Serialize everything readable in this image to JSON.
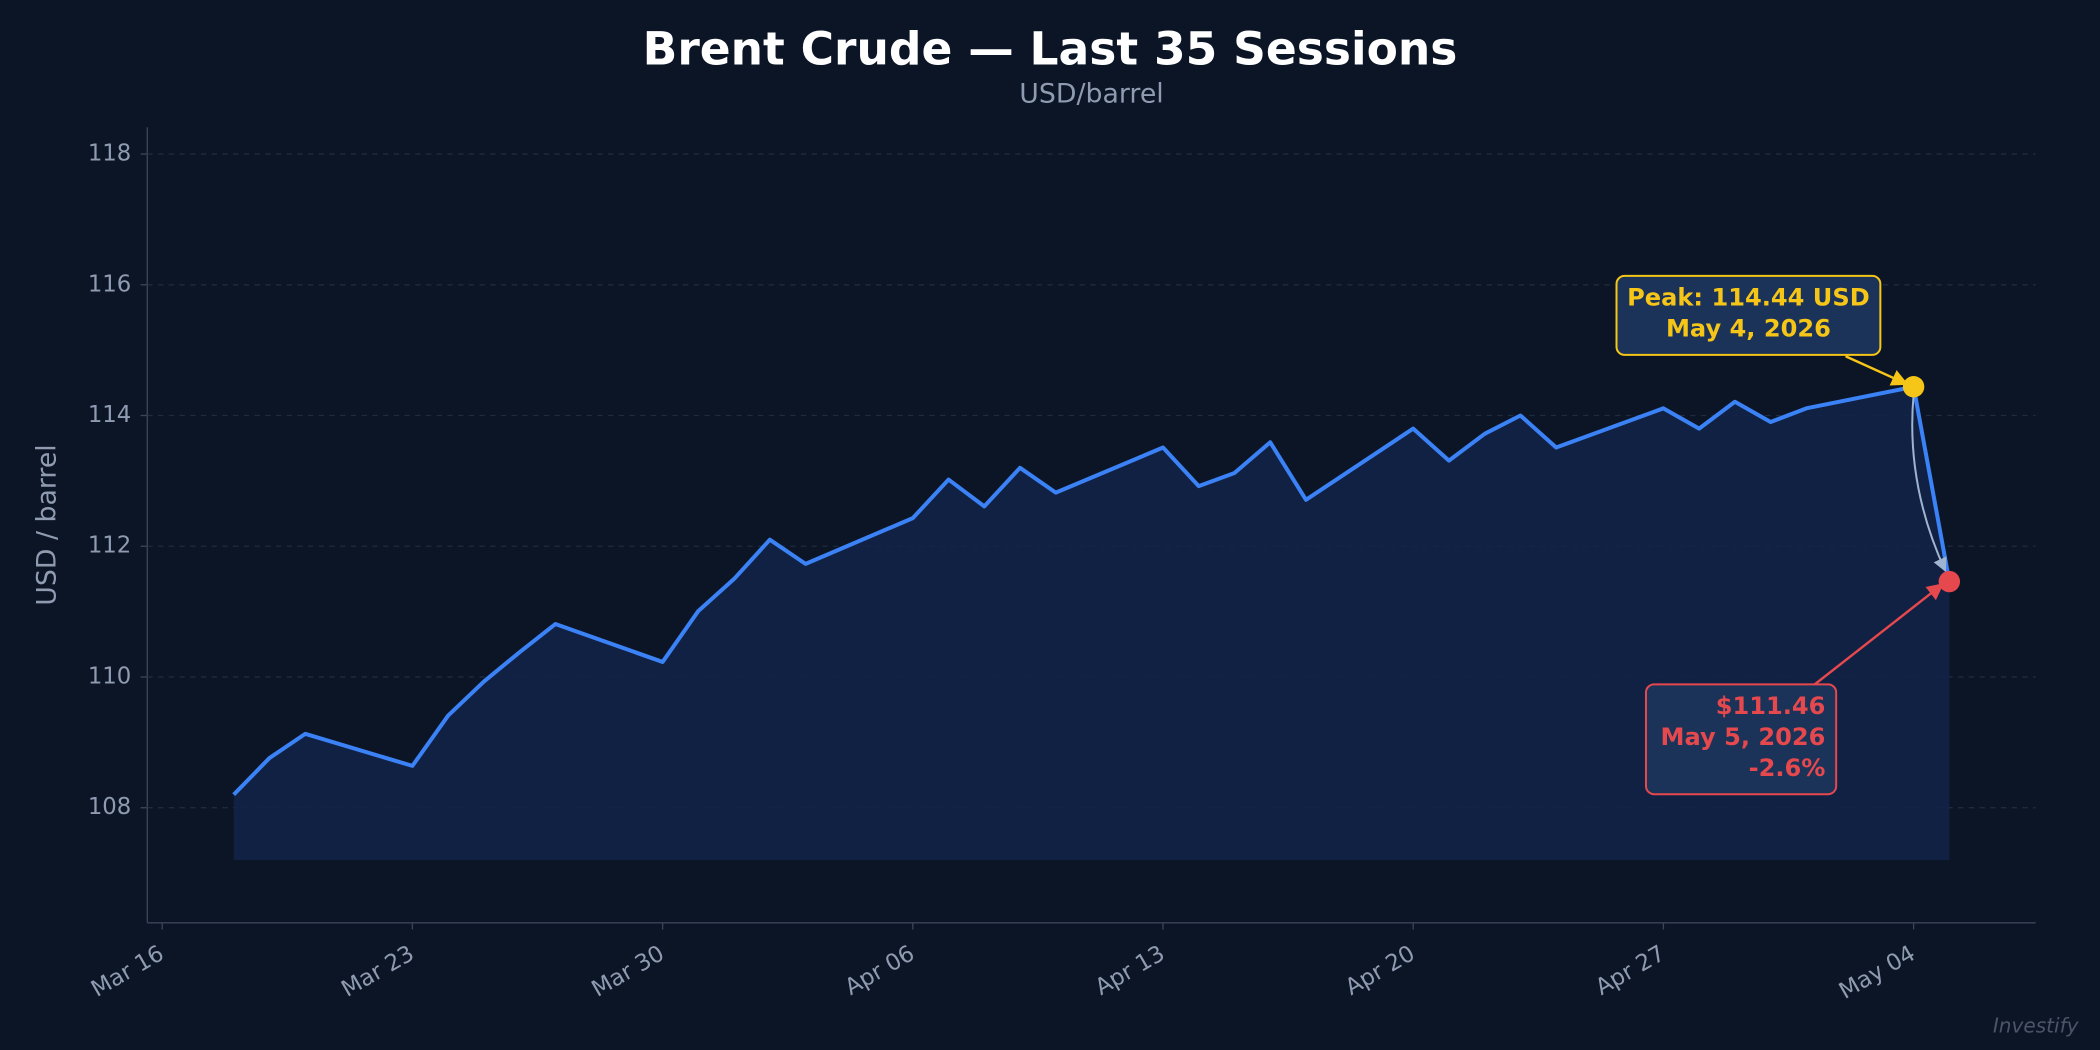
{
  "chart_data": {
    "type": "line",
    "title": "Brent Crude — Last 35 Sessions",
    "subtitle": "USD/barrel",
    "y_label": "USD / barrel",
    "watermark": "Investify",
    "x": [
      "2026-03-18",
      "2026-03-19",
      "2026-03-20",
      "2026-03-23",
      "2026-03-24",
      "2026-03-25",
      "2026-03-26",
      "2026-03-27",
      "2026-03-30",
      "2026-03-31",
      "2026-04-01",
      "2026-04-02",
      "2026-04-03",
      "2026-04-06",
      "2026-04-07",
      "2026-04-08",
      "2026-04-09",
      "2026-04-10",
      "2026-04-13",
      "2026-04-14",
      "2026-04-15",
      "2026-04-16",
      "2026-04-17",
      "2026-04-20",
      "2026-04-21",
      "2026-04-22",
      "2026-04-23",
      "2026-04-24",
      "2026-04-27",
      "2026-04-28",
      "2026-04-29",
      "2026-04-30",
      "2026-05-01",
      "2026-05-04",
      "2026-05-05"
    ],
    "series": [
      {
        "name": "Brent Crude",
        "color": "#3b82f6",
        "values": [
          108.2,
          108.76,
          109.13,
          108.64,
          109.41,
          109.93,
          110.38,
          110.81,
          110.23,
          111.01,
          111.5,
          112.1,
          111.73,
          112.43,
          113.02,
          112.61,
          113.2,
          112.82,
          113.51,
          112.92,
          113.12,
          113.59,
          112.71,
          113.8,
          113.31,
          113.72,
          114.0,
          113.51,
          114.11,
          113.8,
          114.21,
          113.9,
          114.11,
          114.44,
          111.46
        ]
      }
    ],
    "fill_baseline": 107.2,
    "xlim": [
      "2026-03-15T14:00Z",
      "2026-05-07T10:00Z"
    ],
    "xticks": [
      {
        "value": "2026-03-16",
        "label": "Mar 16"
      },
      {
        "value": "2026-03-23",
        "label": "Mar 23"
      },
      {
        "value": "2026-03-30",
        "label": "Mar 30"
      },
      {
        "value": "2026-04-06",
        "label": "Apr 06"
      },
      {
        "value": "2026-04-13",
        "label": "Apr 13"
      },
      {
        "value": "2026-04-20",
        "label": "Apr 20"
      },
      {
        "value": "2026-04-27",
        "label": "Apr 27"
      },
      {
        "value": "2026-05-04",
        "label": "May 04"
      }
    ],
    "ylim": [
      106.24,
      118.41
    ],
    "yticks": [
      108,
      110,
      112,
      114,
      116,
      118
    ],
    "grid": true,
    "annotations": [
      {
        "index": 33,
        "color": "#f5c518",
        "lines": [
          "Peak: 114.44 USD",
          "May 4, 2026"
        ]
      },
      {
        "index": 34,
        "color": "#e5484d",
        "lines": [
          "$111.46",
          "May 5, 2026",
          "-2.6%"
        ]
      }
    ]
  }
}
